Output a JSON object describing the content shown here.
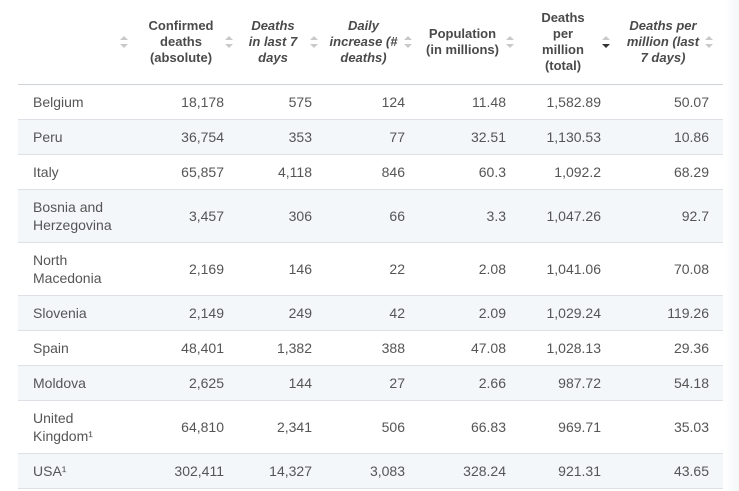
{
  "table": {
    "headers": [
      {
        "label": "",
        "italic": false
      },
      {
        "label": "Confirmed deaths (absolute)",
        "italic": false
      },
      {
        "label": "Deaths in last 7 days",
        "italic": true
      },
      {
        "label": "Daily increase (# deaths)",
        "italic": true
      },
      {
        "label": "Population (in millions)",
        "italic": false
      },
      {
        "label": "Deaths per million (total)",
        "italic": false,
        "sorted": "desc"
      },
      {
        "label": "Deaths per million (last 7 days)",
        "italic": true
      }
    ],
    "rows": [
      {
        "country": "Belgium",
        "confirmed": "18,178",
        "last7": "575",
        "daily": "124",
        "population": "11.48",
        "per_million": "1,582.89",
        "per_million_7d": "50.07"
      },
      {
        "country": "Peru",
        "confirmed": "36,754",
        "last7": "353",
        "daily": "77",
        "population": "32.51",
        "per_million": "1,130.53",
        "per_million_7d": "10.86"
      },
      {
        "country": "Italy",
        "confirmed": "65,857",
        "last7": "4,118",
        "daily": "846",
        "population": "60.3",
        "per_million": "1,092.2",
        "per_million_7d": "68.29"
      },
      {
        "country": "Bosnia and Herzegovina",
        "confirmed": "3,457",
        "last7": "306",
        "daily": "66",
        "population": "3.3",
        "per_million": "1,047.26",
        "per_million_7d": "92.7"
      },
      {
        "country": "North Macedonia",
        "confirmed": "2,169",
        "last7": "146",
        "daily": "22",
        "population": "2.08",
        "per_million": "1,041.06",
        "per_million_7d": "70.08"
      },
      {
        "country": "Slovenia",
        "confirmed": "2,149",
        "last7": "249",
        "daily": "42",
        "population": "2.09",
        "per_million": "1,029.24",
        "per_million_7d": "119.26"
      },
      {
        "country": "Spain",
        "confirmed": "48,401",
        "last7": "1,382",
        "daily": "388",
        "population": "47.08",
        "per_million": "1,028.13",
        "per_million_7d": "29.36"
      },
      {
        "country": "Moldova",
        "confirmed": "2,625",
        "last7": "144",
        "daily": "27",
        "population": "2.66",
        "per_million": "987.72",
        "per_million_7d": "54.18"
      },
      {
        "country": "United Kingdom¹",
        "confirmed": "64,810",
        "last7": "2,341",
        "daily": "506",
        "population": "66.83",
        "per_million": "969.71",
        "per_million_7d": "35.03"
      },
      {
        "country": "USA¹",
        "confirmed": "302,411",
        "last7": "14,327",
        "daily": "3,083",
        "population": "328.24",
        "per_million": "921.31",
        "per_million_7d": "43.65"
      }
    ]
  },
  "colors": {
    "row_stripe": "#f3f7fa",
    "border": "#dde1e5",
    "text": "#555555",
    "sort_icon": "#c9c9c9",
    "sort_active": "#333333"
  }
}
